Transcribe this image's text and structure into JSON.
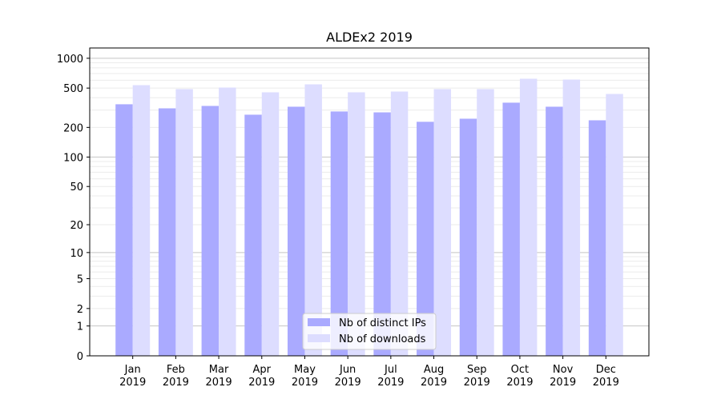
{
  "chart_data": {
    "type": "bar",
    "title": "ALDEx2 2019",
    "xlabel": "",
    "ylabel": "",
    "yscale": "log10(1+y)",
    "ylim": [
      0,
      1270
    ],
    "yticks": [
      0,
      1,
      2,
      5,
      10,
      20,
      50,
      100,
      200,
      500,
      1000
    ],
    "ytick_labels": [
      "0",
      "1",
      "2",
      "5",
      "10",
      "20",
      "50",
      "100",
      "200",
      "500",
      "1000"
    ],
    "categories": [
      [
        "Jan",
        "2019"
      ],
      [
        "Feb",
        "2019"
      ],
      [
        "Mar",
        "2019"
      ],
      [
        "Apr",
        "2019"
      ],
      [
        "May",
        "2019"
      ],
      [
        "Jun",
        "2019"
      ],
      [
        "Jul",
        "2019"
      ],
      [
        "Aug",
        "2019"
      ],
      [
        "Sep",
        "2019"
      ],
      [
        "Oct",
        "2019"
      ],
      [
        "Nov",
        "2019"
      ],
      [
        "Dec",
        "2019"
      ]
    ],
    "series": [
      {
        "name": "Nb of distinct IPs",
        "color": "#aaaaff",
        "values": [
          343,
          312,
          330,
          269,
          324,
          290,
          284,
          228,
          245,
          356,
          324,
          236
        ]
      },
      {
        "name": "Nb of downloads",
        "color": "#ddddff",
        "values": [
          535,
          488,
          506,
          453,
          545,
          453,
          461,
          488,
          488,
          621,
          609,
          436
        ]
      }
    ],
    "grid": true,
    "legend_position": "bottom-center"
  }
}
